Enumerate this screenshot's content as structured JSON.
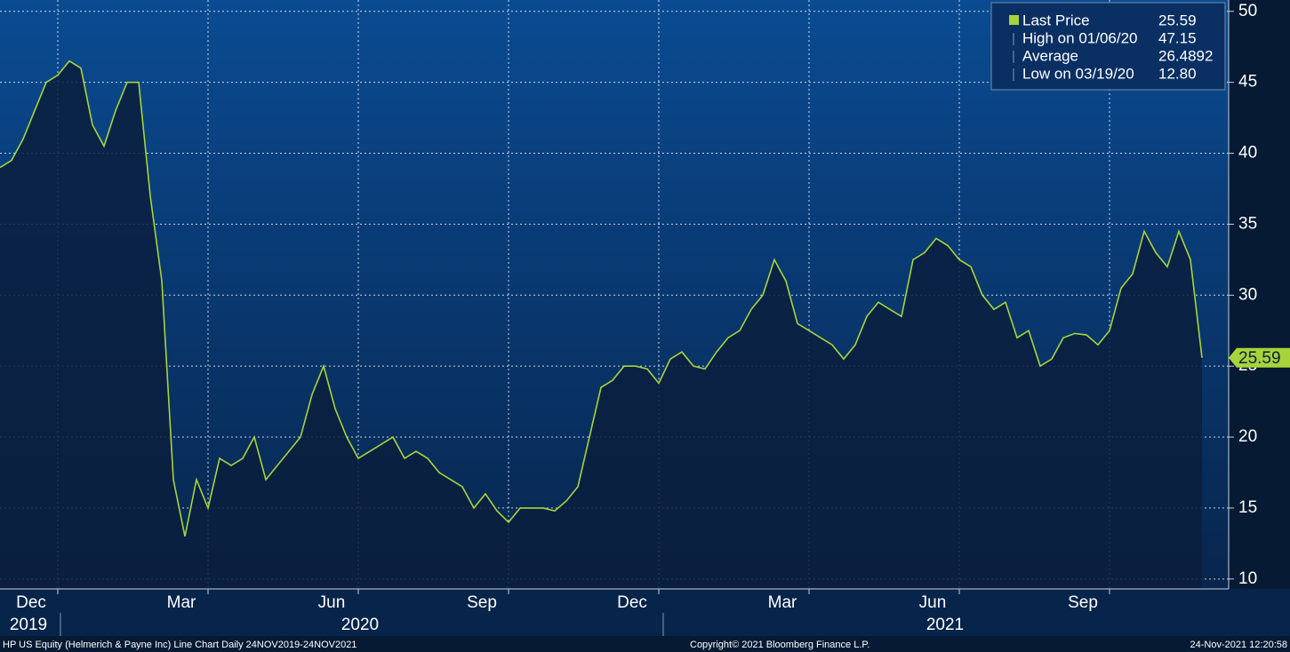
{
  "chart_data": {
    "type": "line",
    "categories": [
      null,
      null,
      null,
      null,
      null,
      "Dec",
      null,
      null,
      null,
      null,
      null,
      null,
      null,
      null,
      null,
      null,
      null,
      null,
      "Mar",
      null,
      null,
      null,
      null,
      null,
      null,
      null,
      null,
      null,
      null,
      null,
      null,
      "Jun",
      null,
      null,
      null,
      null,
      null,
      null,
      null,
      null,
      null,
      null,
      null,
      null,
      "Sep",
      null,
      null,
      null,
      null,
      null,
      null,
      null,
      null,
      null,
      null,
      null,
      null,
      "Dec",
      null,
      null,
      null,
      null,
      null,
      null,
      null,
      null,
      null,
      null,
      null,
      null,
      "Mar",
      null,
      null,
      null,
      null,
      null,
      null,
      null,
      null,
      null,
      null,
      null,
      null,
      "Jun",
      null,
      null,
      null,
      null,
      null,
      null,
      null,
      null,
      null,
      null,
      null,
      null,
      "Sep",
      null,
      null,
      null,
      null,
      null,
      null,
      null,
      null
    ],
    "x_groups": [
      "2019",
      "2020",
      "2021"
    ],
    "series": [
      {
        "name": "Last Price",
        "color": "#a6d43a",
        "values": [
          39,
          39.5,
          41,
          43,
          45,
          45.5,
          46.5,
          46,
          42,
          40.5,
          43,
          45,
          45,
          37,
          31,
          17,
          13,
          17,
          15,
          18.5,
          18,
          18.5,
          20,
          17,
          18,
          19,
          20,
          23,
          25,
          22,
          20,
          18.5,
          19,
          19.5,
          20,
          18.5,
          19,
          18.5,
          17.5,
          17,
          16.5,
          15,
          16,
          14.8,
          14,
          15,
          15,
          15,
          14.8,
          15.5,
          16.5,
          20,
          23.5,
          24,
          25,
          25,
          24.8,
          23.8,
          25.5,
          26,
          25,
          24.8,
          26,
          27,
          27.5,
          29,
          30,
          32.5,
          31,
          28,
          27.5,
          27,
          26.5,
          25.5,
          26.5,
          28.5,
          29.5,
          29,
          28.5,
          32.5,
          33,
          34,
          33.5,
          32.5,
          32,
          30,
          29,
          29.5,
          27,
          27.5,
          25,
          25.5,
          27,
          27.3,
          27.2,
          26.5,
          27.5,
          30.5,
          31.5,
          34.5,
          33,
          32,
          34.5,
          32.5,
          25.59
        ]
      }
    ],
    "stats": [
      {
        "name": "High on 01/06/20",
        "value": 47.15
      },
      {
        "name": "Average",
        "value": 26.4892
      },
      {
        "name": "Low on 03/19/20",
        "value": 12.8,
        "value_label": "12.80"
      }
    ],
    "ylim": [
      9.3,
      50.8
    ],
    "yticks": [
      10,
      15,
      20,
      25,
      30,
      35,
      40,
      45,
      50
    ],
    "grid": true,
    "legend": "top-right"
  },
  "footer": {
    "left": "HP US Equity (Helmerich & Payne Inc) Line Chart  Daily 24NOV2019-24NOV2021",
    "center": "Copyright© 2021 Bloomberg Finance L.P.",
    "right": "24-Nov-2021 12:20:58"
  }
}
